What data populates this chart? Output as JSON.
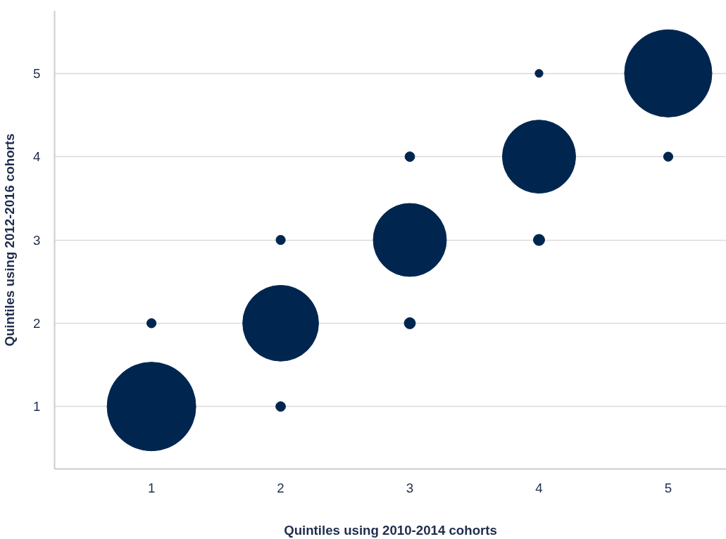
{
  "chart_data": {
    "type": "bubble",
    "xlabel": "Quintiles using 2010-2014 cohorts",
    "ylabel": "Quintiles using 2012-2016 cohorts",
    "series": [
      {
        "color": "#00264f",
        "x": [
          1,
          1,
          2,
          2,
          2,
          3,
          3,
          3,
          4,
          4,
          4,
          5,
          5
        ],
        "values": [
          1,
          2,
          1,
          2,
          3,
          2,
          3,
          4,
          3,
          4,
          5,
          4,
          5
        ],
        "sizes": [
          1,
          0.011,
          0.012,
          0.73,
          0.011,
          0.016,
          0.68,
          0.012,
          0.016,
          0.68,
          0.008,
          0.011,
          0.97
        ]
      }
    ],
    "xlim": [
      0.25,
      5.45
    ],
    "ylim": [
      0.25,
      5.75
    ],
    "xticks": [
      1,
      2,
      3,
      4,
      5
    ],
    "yticks": [
      1,
      2,
      3,
      4,
      5
    ],
    "grid": "y"
  }
}
